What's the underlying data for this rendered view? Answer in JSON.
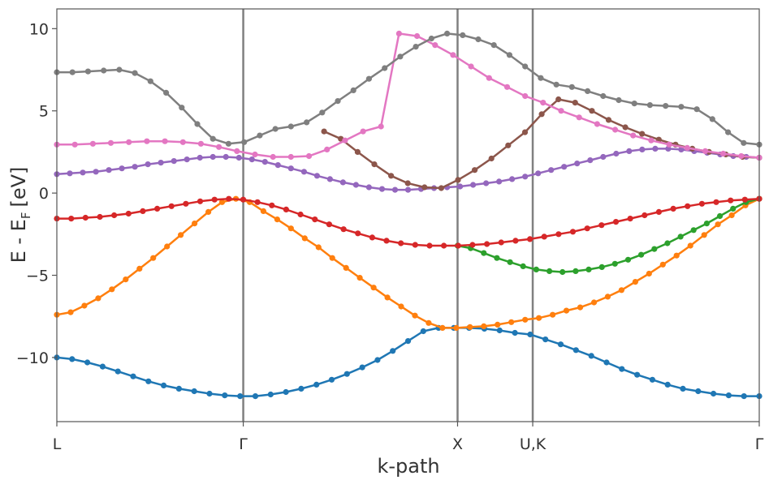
{
  "chart_data": {
    "type": "line",
    "xlabel": "k-path",
    "ylabel": "E - E",
    "ylabel_subscript": "F",
    "ylabel_unit": "[eV]",
    "ylim": [
      -13.9,
      11.2
    ],
    "xlim": [
      0,
      1
    ],
    "grid": false,
    "yticks": [
      {
        "value": 10,
        "label": "10"
      },
      {
        "value": 5,
        "label": "5"
      },
      {
        "value": 0,
        "label": "0"
      },
      {
        "value": -5,
        "label": "−5"
      },
      {
        "value": -10,
        "label": "−10"
      }
    ],
    "kpoints": [
      {
        "label": "L",
        "x": 0.0
      },
      {
        "label": "Γ",
        "x": 0.2654
      },
      {
        "label": "X",
        "x": 0.5705
      },
      {
        "label": "U,K",
        "x": 0.6775
      },
      {
        "label": "Γ",
        "x": 1.0
      }
    ],
    "series": [
      {
        "color": "#1f77b4",
        "values": [
          -10.0,
          -10.1,
          -10.3,
          -10.55,
          -10.85,
          -11.15,
          -11.45,
          -11.7,
          -11.9,
          -12.05,
          -12.2,
          -12.3,
          -12.35,
          -12.35,
          -12.25,
          -12.1,
          -11.9,
          -11.65,
          -11.35,
          -11.0,
          -10.6,
          -10.15,
          -9.6,
          -9.0,
          -8.4,
          -8.2,
          -8.2,
          -8.2,
          -8.25,
          -8.35,
          -8.5,
          -8.6,
          -8.9,
          -9.2,
          -9.55,
          -9.9,
          -10.3,
          -10.7,
          -11.05,
          -11.35,
          -11.65,
          -11.9,
          -12.05,
          -12.2,
          -12.3,
          -12.35,
          -12.35
        ]
      },
      {
        "color": "#ff7f0e",
        "values": [
          -7.4,
          -7.25,
          -6.85,
          -6.4,
          -5.85,
          -5.25,
          -4.6,
          -3.95,
          -3.25,
          -2.55,
          -1.85,
          -1.15,
          -0.55,
          -0.35,
          -0.55,
          -1.1,
          -1.6,
          -2.15,
          -2.75,
          -3.3,
          -3.95,
          -4.55,
          -5.15,
          -5.75,
          -6.35,
          -6.9,
          -7.45,
          -7.9,
          -8.2,
          -8.2,
          -8.15,
          -8.1,
          -8.0,
          -7.85,
          -7.7,
          -7.6,
          -7.4,
          -7.15,
          -6.95,
          -6.65,
          -6.3,
          -5.9,
          -5.4,
          -4.9,
          -4.35,
          -3.8,
          -3.2,
          -2.55,
          -1.9,
          -1.35,
          -0.75,
          -0.35
        ]
      },
      {
        "color": "#2ca02c",
        "values": [
          -3.2,
          -3.35,
          -3.65,
          -3.95,
          -4.2,
          -4.45,
          -4.65,
          -4.75,
          -4.8,
          -4.75,
          -4.65,
          -4.5,
          -4.3,
          -4.05,
          -3.75,
          -3.4,
          -3.05,
          -2.65,
          -2.25,
          -1.85,
          -1.4,
          -0.95,
          -0.55,
          -0.35
        ]
      },
      {
        "color": "#d62728",
        "values": [
          -1.55,
          -1.55,
          -1.5,
          -1.45,
          -1.35,
          -1.25,
          -1.1,
          -0.95,
          -0.8,
          -0.65,
          -0.5,
          -0.4,
          -0.35,
          -0.4,
          -0.55,
          -0.75,
          -1.0,
          -1.3,
          -1.6,
          -1.9,
          -2.2,
          -2.45,
          -2.7,
          -2.9,
          -3.05,
          -3.15,
          -3.2,
          -3.2,
          -3.2,
          -3.15,
          -3.1,
          -3.0,
          -2.9,
          -2.8,
          -2.65,
          -2.5,
          -2.35,
          -2.15,
          -1.95,
          -1.75,
          -1.55,
          -1.35,
          -1.15,
          -0.95,
          -0.8,
          -0.65,
          -0.55,
          -0.45,
          -0.4,
          -0.35
        ]
      },
      {
        "color": "#9467bd",
        "values": [
          1.15,
          1.2,
          1.25,
          1.3,
          1.4,
          1.5,
          1.6,
          1.75,
          1.85,
          1.95,
          2.05,
          2.15,
          2.2,
          2.2,
          2.15,
          2.05,
          1.9,
          1.7,
          1.5,
          1.3,
          1.05,
          0.85,
          0.65,
          0.5,
          0.35,
          0.25,
          0.2,
          0.2,
          0.25,
          0.3,
          0.35,
          0.4,
          0.5,
          0.6,
          0.7,
          0.85,
          1.0,
          1.2,
          1.4,
          1.6,
          1.8,
          2.0,
          2.2,
          2.4,
          2.55,
          2.65,
          2.7,
          2.7,
          2.65,
          2.55,
          2.45,
          2.35,
          2.25,
          2.2,
          2.15
        ]
      },
      {
        "color": "#8c564b",
        "values": [
          3.75,
          3.3,
          2.5,
          1.75,
          1.05,
          0.6,
          0.35,
          0.3,
          0.8,
          1.4,
          2.1,
          2.9,
          3.7,
          4.8,
          5.7,
          5.5,
          5.0,
          4.45,
          4.0,
          3.6,
          3.25,
          2.95,
          2.7,
          2.5,
          2.35,
          2.2,
          2.15
        ]
      },
      {
        "color": "#e377c2",
        "values": [
          2.95,
          2.95,
          3.0,
          3.05,
          3.1,
          3.15,
          3.15,
          3.1,
          3.0,
          2.8,
          2.55,
          2.35,
          2.2,
          2.2,
          2.25,
          2.65,
          3.2,
          3.75,
          4.05,
          9.7,
          9.55,
          9.0,
          8.4,
          7.7,
          7.0,
          6.45,
          5.9,
          5.5,
          5.0,
          4.6,
          4.2,
          3.85,
          3.5,
          3.2,
          2.95,
          2.75,
          2.55,
          2.4,
          2.25,
          2.15
        ]
      },
      {
        "color": "#7f7f7f",
        "values": [
          7.35,
          7.35,
          7.4,
          7.45,
          7.5,
          7.3,
          6.8,
          6.1,
          5.2,
          4.2,
          3.3,
          3.0,
          3.1,
          3.5,
          3.9,
          4.05,
          4.3,
          4.9,
          5.6,
          6.25,
          6.95,
          7.6,
          8.3,
          8.9,
          9.4,
          9.7,
          9.6,
          9.35,
          9.0,
          8.4,
          7.7,
          7.0,
          6.6,
          6.45,
          6.2,
          5.9,
          5.65,
          5.45,
          5.35,
          5.3,
          5.25,
          5.1,
          4.5,
          3.7,
          3.05,
          2.95
        ]
      }
    ]
  }
}
